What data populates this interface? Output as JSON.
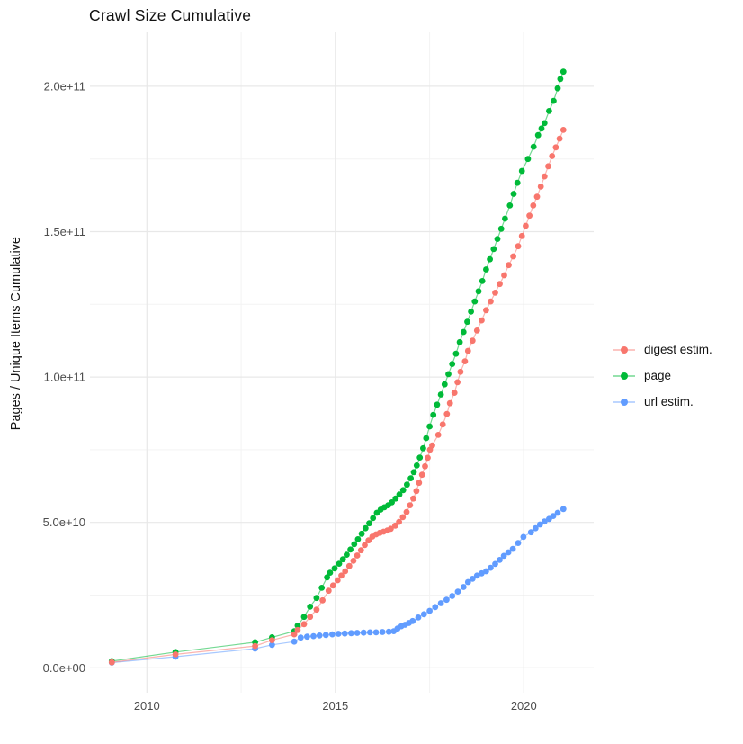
{
  "title": "Crawl Size Cumulative",
  "chart_data": {
    "type": "scatter",
    "mode": "points-with-lines",
    "title": "Crawl Size Cumulative",
    "xlabel": "",
    "ylabel": "Pages / Unique Items Cumulative",
    "value_unit": "pages, billions (1e9)",
    "grid": true,
    "legend_position": "right-middle",
    "x_axis": {
      "range": [
        2008.5,
        2021.8
      ],
      "major_ticks": [
        {
          "value": 2010,
          "label": "2010"
        },
        {
          "value": 2015,
          "label": "2015"
        },
        {
          "value": 2020,
          "label": "2020"
        }
      ],
      "minor_gridlines": [
        2012.5,
        2017.5
      ]
    },
    "y_axis": {
      "range": [
        0,
        218
      ],
      "major_ticks": [
        {
          "value": 0,
          "label": "0.0e+00"
        },
        {
          "value": 50,
          "label": "5.0e+10"
        },
        {
          "value": 100,
          "label": "1.0e+11"
        },
        {
          "value": 150,
          "label": "1.5e+11"
        },
        {
          "value": 200,
          "label": "2.0e+11"
        }
      ],
      "minor_gridlines": [
        25,
        75,
        125,
        175
      ]
    },
    "series": [
      {
        "name": "digest estim.",
        "color": "#F8766D",
        "points": [
          [
            2009.07,
            1.9
          ],
          [
            2010.76,
            4.6
          ],
          [
            2012.87,
            7.5
          ],
          [
            2013.32,
            9.5
          ],
          [
            2013.91,
            11.5
          ],
          [
            2014.0,
            13.0
          ],
          [
            2014.17,
            15.0
          ],
          [
            2014.33,
            17.5
          ],
          [
            2014.5,
            20.0
          ],
          [
            2014.66,
            23.2
          ],
          [
            2014.82,
            26.5
          ],
          [
            2014.94,
            28.3
          ],
          [
            2015.06,
            30.1
          ],
          [
            2015.16,
            31.7
          ],
          [
            2015.26,
            33.2
          ],
          [
            2015.37,
            35.0
          ],
          [
            2015.48,
            36.8
          ],
          [
            2015.58,
            38.6
          ],
          [
            2015.68,
            40.4
          ],
          [
            2015.78,
            42.2
          ],
          [
            2015.88,
            43.8
          ],
          [
            2015.98,
            45.1
          ],
          [
            2016.08,
            45.9
          ],
          [
            2016.18,
            46.4
          ],
          [
            2016.28,
            46.8
          ],
          [
            2016.38,
            47.2
          ],
          [
            2016.47,
            47.8
          ],
          [
            2016.59,
            48.9
          ],
          [
            2016.69,
            50.2
          ],
          [
            2016.79,
            51.8
          ],
          [
            2016.89,
            53.6
          ],
          [
            2016.98,
            55.9
          ],
          [
            2017.07,
            58.2
          ],
          [
            2017.15,
            60.8
          ],
          [
            2017.22,
            63.6
          ],
          [
            2017.3,
            66.4
          ],
          [
            2017.38,
            69.3
          ],
          [
            2017.45,
            72.2
          ],
          [
            2017.51,
            75.0
          ],
          [
            2017.57,
            76.5
          ],
          [
            2017.73,
            80.1
          ],
          [
            2017.85,
            83.7
          ],
          [
            2017.96,
            87.3
          ],
          [
            2018.04,
            91.0
          ],
          [
            2018.16,
            94.6
          ],
          [
            2018.24,
            98.2
          ],
          [
            2018.32,
            101.8
          ],
          [
            2018.44,
            105.4
          ],
          [
            2018.52,
            109.0
          ],
          [
            2018.64,
            112.5
          ],
          [
            2018.76,
            116.0
          ],
          [
            2018.88,
            119.5
          ],
          [
            2019.0,
            123.0
          ],
          [
            2019.12,
            126.0
          ],
          [
            2019.24,
            129.0
          ],
          [
            2019.36,
            132.0
          ],
          [
            2019.48,
            135.0
          ],
          [
            2019.6,
            138.5
          ],
          [
            2019.72,
            141.5
          ],
          [
            2019.85,
            145.0
          ],
          [
            2019.95,
            148.5
          ],
          [
            2020.05,
            152.0
          ],
          [
            2020.15,
            155.5
          ],
          [
            2020.25,
            159.0
          ],
          [
            2020.35,
            162.0
          ],
          [
            2020.45,
            165.5
          ],
          [
            2020.55,
            169.0
          ],
          [
            2020.65,
            172.5
          ],
          [
            2020.75,
            176.0
          ],
          [
            2020.85,
            179.0
          ],
          [
            2020.95,
            182.0
          ],
          [
            2021.05,
            185.0
          ]
        ]
      },
      {
        "name": "page",
        "color": "#00BA38",
        "points": [
          [
            2009.07,
            2.3
          ],
          [
            2010.76,
            5.4
          ],
          [
            2012.87,
            8.8
          ],
          [
            2013.32,
            10.5
          ],
          [
            2013.91,
            12.6
          ],
          [
            2014.0,
            14.5
          ],
          [
            2014.17,
            17.5
          ],
          [
            2014.33,
            21.0
          ],
          [
            2014.5,
            24.0
          ],
          [
            2014.64,
            27.5
          ],
          [
            2014.78,
            31.1
          ],
          [
            2014.86,
            32.7
          ],
          [
            2014.98,
            34.2
          ],
          [
            2015.1,
            35.8
          ],
          [
            2015.2,
            37.3
          ],
          [
            2015.3,
            38.9
          ],
          [
            2015.4,
            40.7
          ],
          [
            2015.5,
            42.5
          ],
          [
            2015.6,
            44.2
          ],
          [
            2015.7,
            46.1
          ],
          [
            2015.8,
            48.0
          ],
          [
            2015.9,
            49.7
          ],
          [
            2016.0,
            51.5
          ],
          [
            2016.1,
            53.3
          ],
          [
            2016.2,
            54.4
          ],
          [
            2016.3,
            55.2
          ],
          [
            2016.4,
            55.9
          ],
          [
            2016.5,
            56.9
          ],
          [
            2016.6,
            58.2
          ],
          [
            2016.7,
            59.6
          ],
          [
            2016.8,
            61.1
          ],
          [
            2016.9,
            63.0
          ],
          [
            2017.0,
            65.2
          ],
          [
            2017.08,
            67.3
          ],
          [
            2017.16,
            69.6
          ],
          [
            2017.24,
            72.3
          ],
          [
            2017.33,
            75.5
          ],
          [
            2017.41,
            79.0
          ],
          [
            2017.5,
            83.0
          ],
          [
            2017.6,
            87.0
          ],
          [
            2017.7,
            90.5
          ],
          [
            2017.8,
            94.0
          ],
          [
            2017.9,
            97.5
          ],
          [
            2018.0,
            101.0
          ],
          [
            2018.1,
            104.5
          ],
          [
            2018.2,
            108.0
          ],
          [
            2018.3,
            112.0
          ],
          [
            2018.4,
            115.5
          ],
          [
            2018.5,
            119.0
          ],
          [
            2018.6,
            122.5
          ],
          [
            2018.7,
            126.0
          ],
          [
            2018.8,
            129.5
          ],
          [
            2018.9,
            133.0
          ],
          [
            2019.0,
            137.0
          ],
          [
            2019.1,
            140.5
          ],
          [
            2019.2,
            144.0
          ],
          [
            2019.3,
            147.5
          ],
          [
            2019.4,
            151.0
          ],
          [
            2019.5,
            154.5
          ],
          [
            2019.63,
            159.0
          ],
          [
            2019.73,
            163.0
          ],
          [
            2019.83,
            166.8
          ],
          [
            2019.95,
            170.9
          ],
          [
            2020.11,
            175.0
          ],
          [
            2020.26,
            179.2
          ],
          [
            2020.38,
            183.2
          ],
          [
            2020.47,
            185.5
          ],
          [
            2020.55,
            187.3
          ],
          [
            2020.67,
            191.5
          ],
          [
            2020.79,
            195.0
          ],
          [
            2020.9,
            199.3
          ],
          [
            2020.97,
            202.5
          ],
          [
            2021.05,
            205.0
          ]
        ]
      },
      {
        "name": "url estim.",
        "color": "#619CFF",
        "points": [
          [
            2009.07,
            1.8
          ],
          [
            2010.76,
            3.8
          ],
          [
            2012.87,
            6.6
          ],
          [
            2013.32,
            7.9
          ],
          [
            2013.91,
            9.0
          ],
          [
            2014.08,
            10.4
          ],
          [
            2014.25,
            10.7
          ],
          [
            2014.42,
            10.9
          ],
          [
            2014.58,
            11.1
          ],
          [
            2014.75,
            11.3
          ],
          [
            2014.92,
            11.5
          ],
          [
            2015.08,
            11.7
          ],
          [
            2015.25,
            11.8
          ],
          [
            2015.42,
            11.9
          ],
          [
            2015.58,
            12.0
          ],
          [
            2015.75,
            12.1
          ],
          [
            2015.92,
            12.2
          ],
          [
            2016.08,
            12.2
          ],
          [
            2016.25,
            12.3
          ],
          [
            2016.42,
            12.4
          ],
          [
            2016.55,
            12.6
          ],
          [
            2016.65,
            13.5
          ],
          [
            2016.75,
            14.3
          ],
          [
            2016.85,
            14.8
          ],
          [
            2016.95,
            15.4
          ],
          [
            2017.05,
            16.1
          ],
          [
            2017.2,
            17.3
          ],
          [
            2017.35,
            18.4
          ],
          [
            2017.5,
            19.6
          ],
          [
            2017.65,
            20.9
          ],
          [
            2017.8,
            22.2
          ],
          [
            2017.95,
            23.4
          ],
          [
            2018.1,
            24.7
          ],
          [
            2018.25,
            26.2
          ],
          [
            2018.4,
            27.8
          ],
          [
            2018.52,
            29.5
          ],
          [
            2018.64,
            30.6
          ],
          [
            2018.76,
            31.7
          ],
          [
            2018.88,
            32.5
          ],
          [
            2019.0,
            33.2
          ],
          [
            2019.12,
            34.4
          ],
          [
            2019.24,
            35.7
          ],
          [
            2019.36,
            37.1
          ],
          [
            2019.47,
            38.5
          ],
          [
            2019.59,
            39.7
          ],
          [
            2019.71,
            40.9
          ],
          [
            2019.85,
            42.9
          ],
          [
            2019.99,
            45.0
          ],
          [
            2020.19,
            46.6
          ],
          [
            2020.31,
            48.0
          ],
          [
            2020.43,
            49.3
          ],
          [
            2020.55,
            50.3
          ],
          [
            2020.67,
            51.2
          ],
          [
            2020.78,
            52.2
          ],
          [
            2020.9,
            53.3
          ],
          [
            2021.05,
            54.6
          ]
        ]
      }
    ]
  },
  "colors": {
    "grid_major": "#E8E8E8",
    "grid_minor": "#F3F3F3",
    "axis_text": "#4D4D4D",
    "text": "#111111",
    "background": "#FFFFFF"
  }
}
